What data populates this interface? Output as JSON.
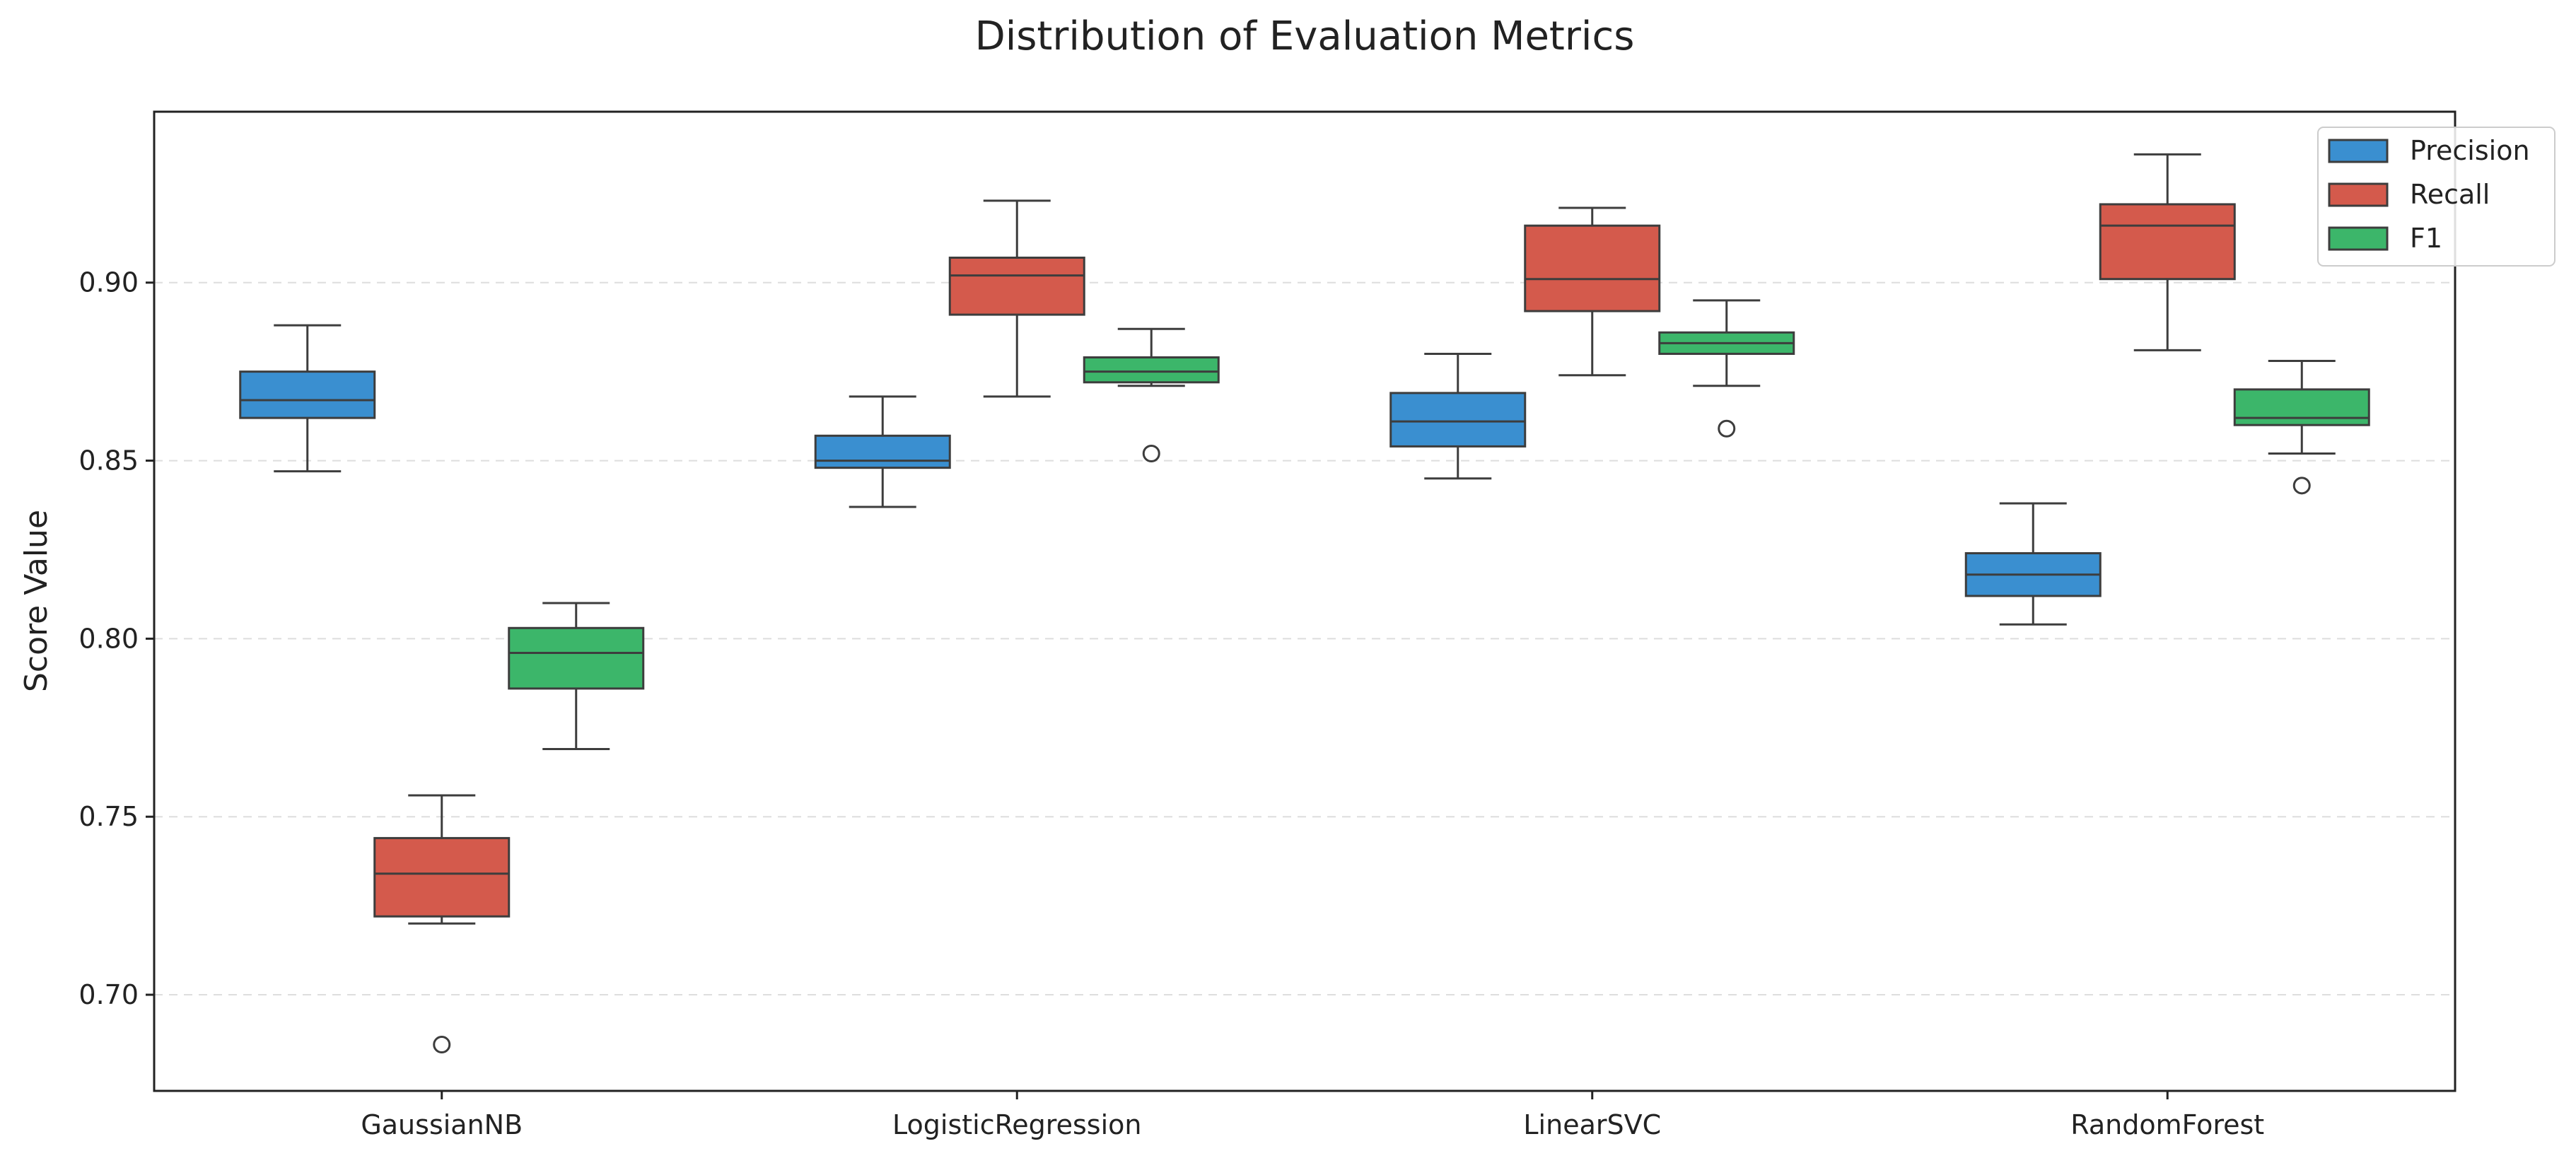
{
  "chart_data": {
    "type": "boxplot",
    "title": "Distribution of Evaluation Metrics",
    "xlabel": "",
    "ylabel": "Score Value",
    "ylim": [
      0.673,
      0.948
    ],
    "yticks": [
      0.7,
      0.75,
      0.8,
      0.85,
      0.9
    ],
    "ytick_labels": [
      "0.70",
      "0.75",
      "0.80",
      "0.85",
      "0.90"
    ],
    "grid": "horizontal dashed",
    "legend_position": "top-right",
    "categories": [
      "GaussianNB",
      "LogisticRegression",
      "LinearSVC",
      "RandomForest"
    ],
    "series": [
      {
        "name": "Precision",
        "color": "#3a8fd0",
        "boxes": [
          {
            "whisker_low": 0.847,
            "q1": 0.862,
            "median": 0.867,
            "q3": 0.875,
            "whisker_high": 0.888,
            "outliers": []
          },
          {
            "whisker_low": 0.837,
            "q1": 0.848,
            "median": 0.85,
            "q3": 0.857,
            "whisker_high": 0.868,
            "outliers": []
          },
          {
            "whisker_low": 0.845,
            "q1": 0.854,
            "median": 0.861,
            "q3": 0.869,
            "whisker_high": 0.88,
            "outliers": []
          },
          {
            "whisker_low": 0.804,
            "q1": 0.812,
            "median": 0.818,
            "q3": 0.824,
            "whisker_high": 0.838,
            "outliers": []
          }
        ]
      },
      {
        "name": "Recall",
        "color": "#d45a4c",
        "boxes": [
          {
            "whisker_low": 0.72,
            "q1": 0.722,
            "median": 0.734,
            "q3": 0.744,
            "whisker_high": 0.756,
            "outliers": [
              0.686
            ]
          },
          {
            "whisker_low": 0.868,
            "q1": 0.891,
            "median": 0.902,
            "q3": 0.907,
            "whisker_high": 0.923,
            "outliers": []
          },
          {
            "whisker_low": 0.874,
            "q1": 0.892,
            "median": 0.901,
            "q3": 0.916,
            "whisker_high": 0.921,
            "outliers": []
          },
          {
            "whisker_low": 0.881,
            "q1": 0.901,
            "median": 0.916,
            "q3": 0.922,
            "whisker_high": 0.936,
            "outliers": []
          }
        ]
      },
      {
        "name": "F1",
        "color": "#3cb66a",
        "boxes": [
          {
            "whisker_low": 0.769,
            "q1": 0.786,
            "median": 0.796,
            "q3": 0.803,
            "whisker_high": 0.81,
            "outliers": []
          },
          {
            "whisker_low": 0.871,
            "q1": 0.872,
            "median": 0.875,
            "q3": 0.879,
            "whisker_high": 0.887,
            "outliers": [
              0.852
            ]
          },
          {
            "whisker_low": 0.871,
            "q1": 0.88,
            "median": 0.883,
            "q3": 0.886,
            "whisker_high": 0.895,
            "outliers": [
              0.859
            ]
          },
          {
            "whisker_low": 0.852,
            "q1": 0.86,
            "median": 0.862,
            "q3": 0.87,
            "whisker_high": 0.878,
            "outliers": [
              0.843
            ]
          }
        ]
      }
    ]
  }
}
